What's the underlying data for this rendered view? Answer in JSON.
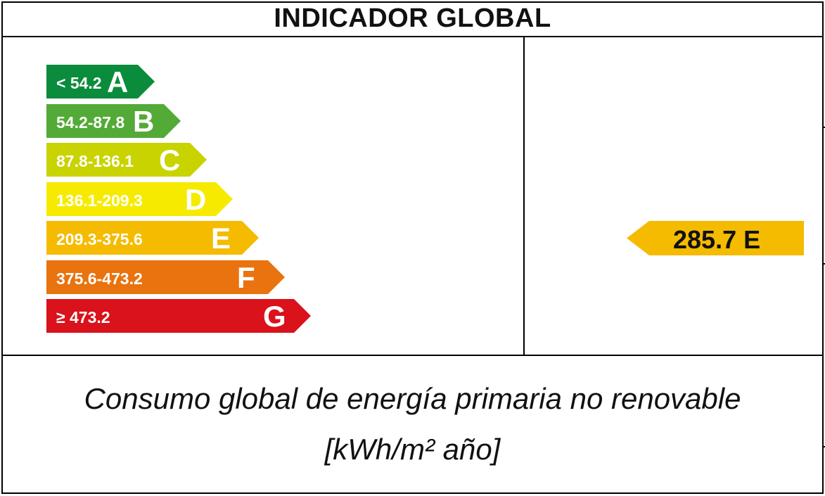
{
  "title": "INDICADOR GLOBAL",
  "chart_data": {
    "type": "bar",
    "title": "INDICADOR GLOBAL",
    "categories": [
      "A",
      "B",
      "C",
      "D",
      "E",
      "F",
      "G"
    ],
    "ranges": [
      "< 54.2",
      "54.2-87.8",
      "87.8-136.1",
      "136.1-209.3",
      "209.3-375.6",
      "375.6-473.2",
      "≥ 473.2"
    ],
    "thresholds": [
      54.2,
      87.8,
      136.1,
      209.3,
      375.6,
      473.2
    ],
    "colors": [
      "#0b8c3c",
      "#53aa36",
      "#c8d300",
      "#f6eb00",
      "#f4bb00",
      "#e9730f",
      "#d9121b"
    ],
    "value": 285.7,
    "rating": "E",
    "indicator_label": "285.7 E",
    "indicator_color": "#f4bb00"
  },
  "footer": {
    "line1": "Consumo global de energía primaria no renovable",
    "line2": "[kWh/m² año]"
  }
}
